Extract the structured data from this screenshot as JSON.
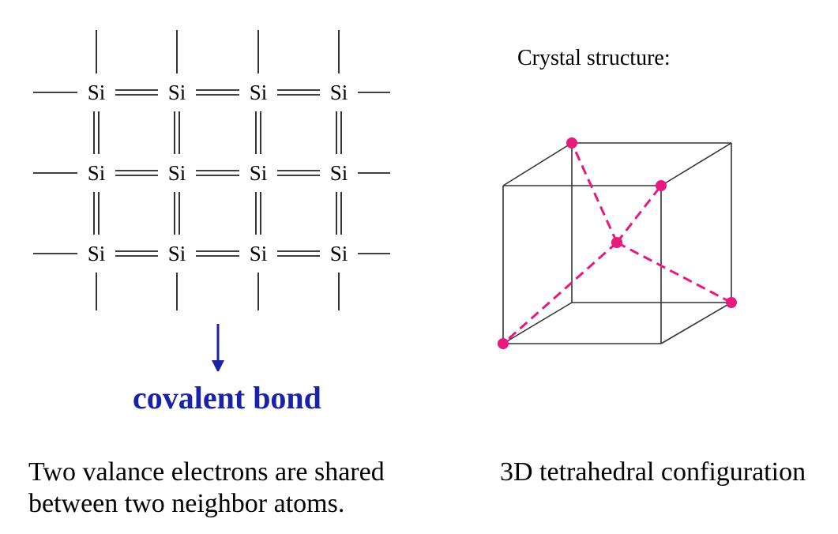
{
  "lattice": {
    "atom_label": "Si",
    "rows": 3,
    "cols": 4
  },
  "covalent_label": "covalent bond",
  "crystal_label": "Crystal structure:",
  "caption_left": {
    "line1": "Two valance electrons are shared",
    "line2": "between two neighbor atoms."
  },
  "caption_right": "3D tetrahedral configuration",
  "colors": {
    "arrow": "#1a23a8",
    "covalent_text": "#1a23a8",
    "tetra_bond": "#e6197e",
    "cube_edge": "#333333",
    "bond_line": "#000000"
  }
}
